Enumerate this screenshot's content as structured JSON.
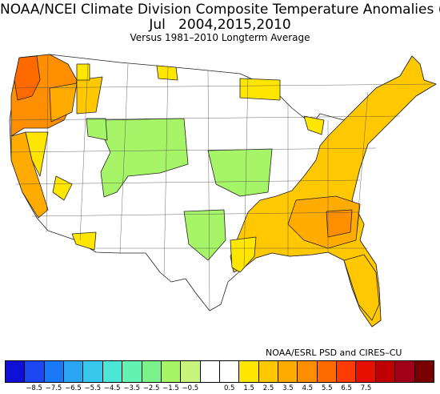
{
  "header": {
    "title_line1": "NOAA/NCEI Climate Division Composite Temperature Anomalies (F)",
    "title_line2": "Jul   2004,2015,2010",
    "subtitle": "Versus 1981–2010 Longterm Average"
  },
  "credit": "NOAA/ESRL PSD and CIRES–CU",
  "colorbar": {
    "colors": [
      "#0f0fd8",
      "#1c46f0",
      "#1a7af5",
      "#2aa5f3",
      "#37c8ec",
      "#4ce6d6",
      "#64f2b2",
      "#7bf18c",
      "#a6f467",
      "#c9f57c",
      "#ffffff",
      "#ffffff",
      "#ffe600",
      "#ffc800",
      "#ffab00",
      "#ff8f00",
      "#ff6a00",
      "#ff3c00",
      "#e60f00",
      "#c00000",
      "#a00018",
      "#780000"
    ],
    "tick_labels": [
      "−8.5",
      "−7.5",
      "−6.5",
      "−5.5",
      "−4.5",
      "−3.5",
      "−2.5",
      "−1.5",
      "−0.5",
      "0.5",
      "1.5",
      "2.5",
      "3.5",
      "4.5",
      "5.5",
      "6.5",
      "7.5"
    ]
  },
  "map": {
    "legend_colors": {
      "cool_1": "#a6f467",
      "warm_1": "#ffe600",
      "warm_2": "#ffc800",
      "warm_3": "#ffab00",
      "warm_4": "#ff8f00",
      "neutral": "#ffffff"
    }
  }
}
